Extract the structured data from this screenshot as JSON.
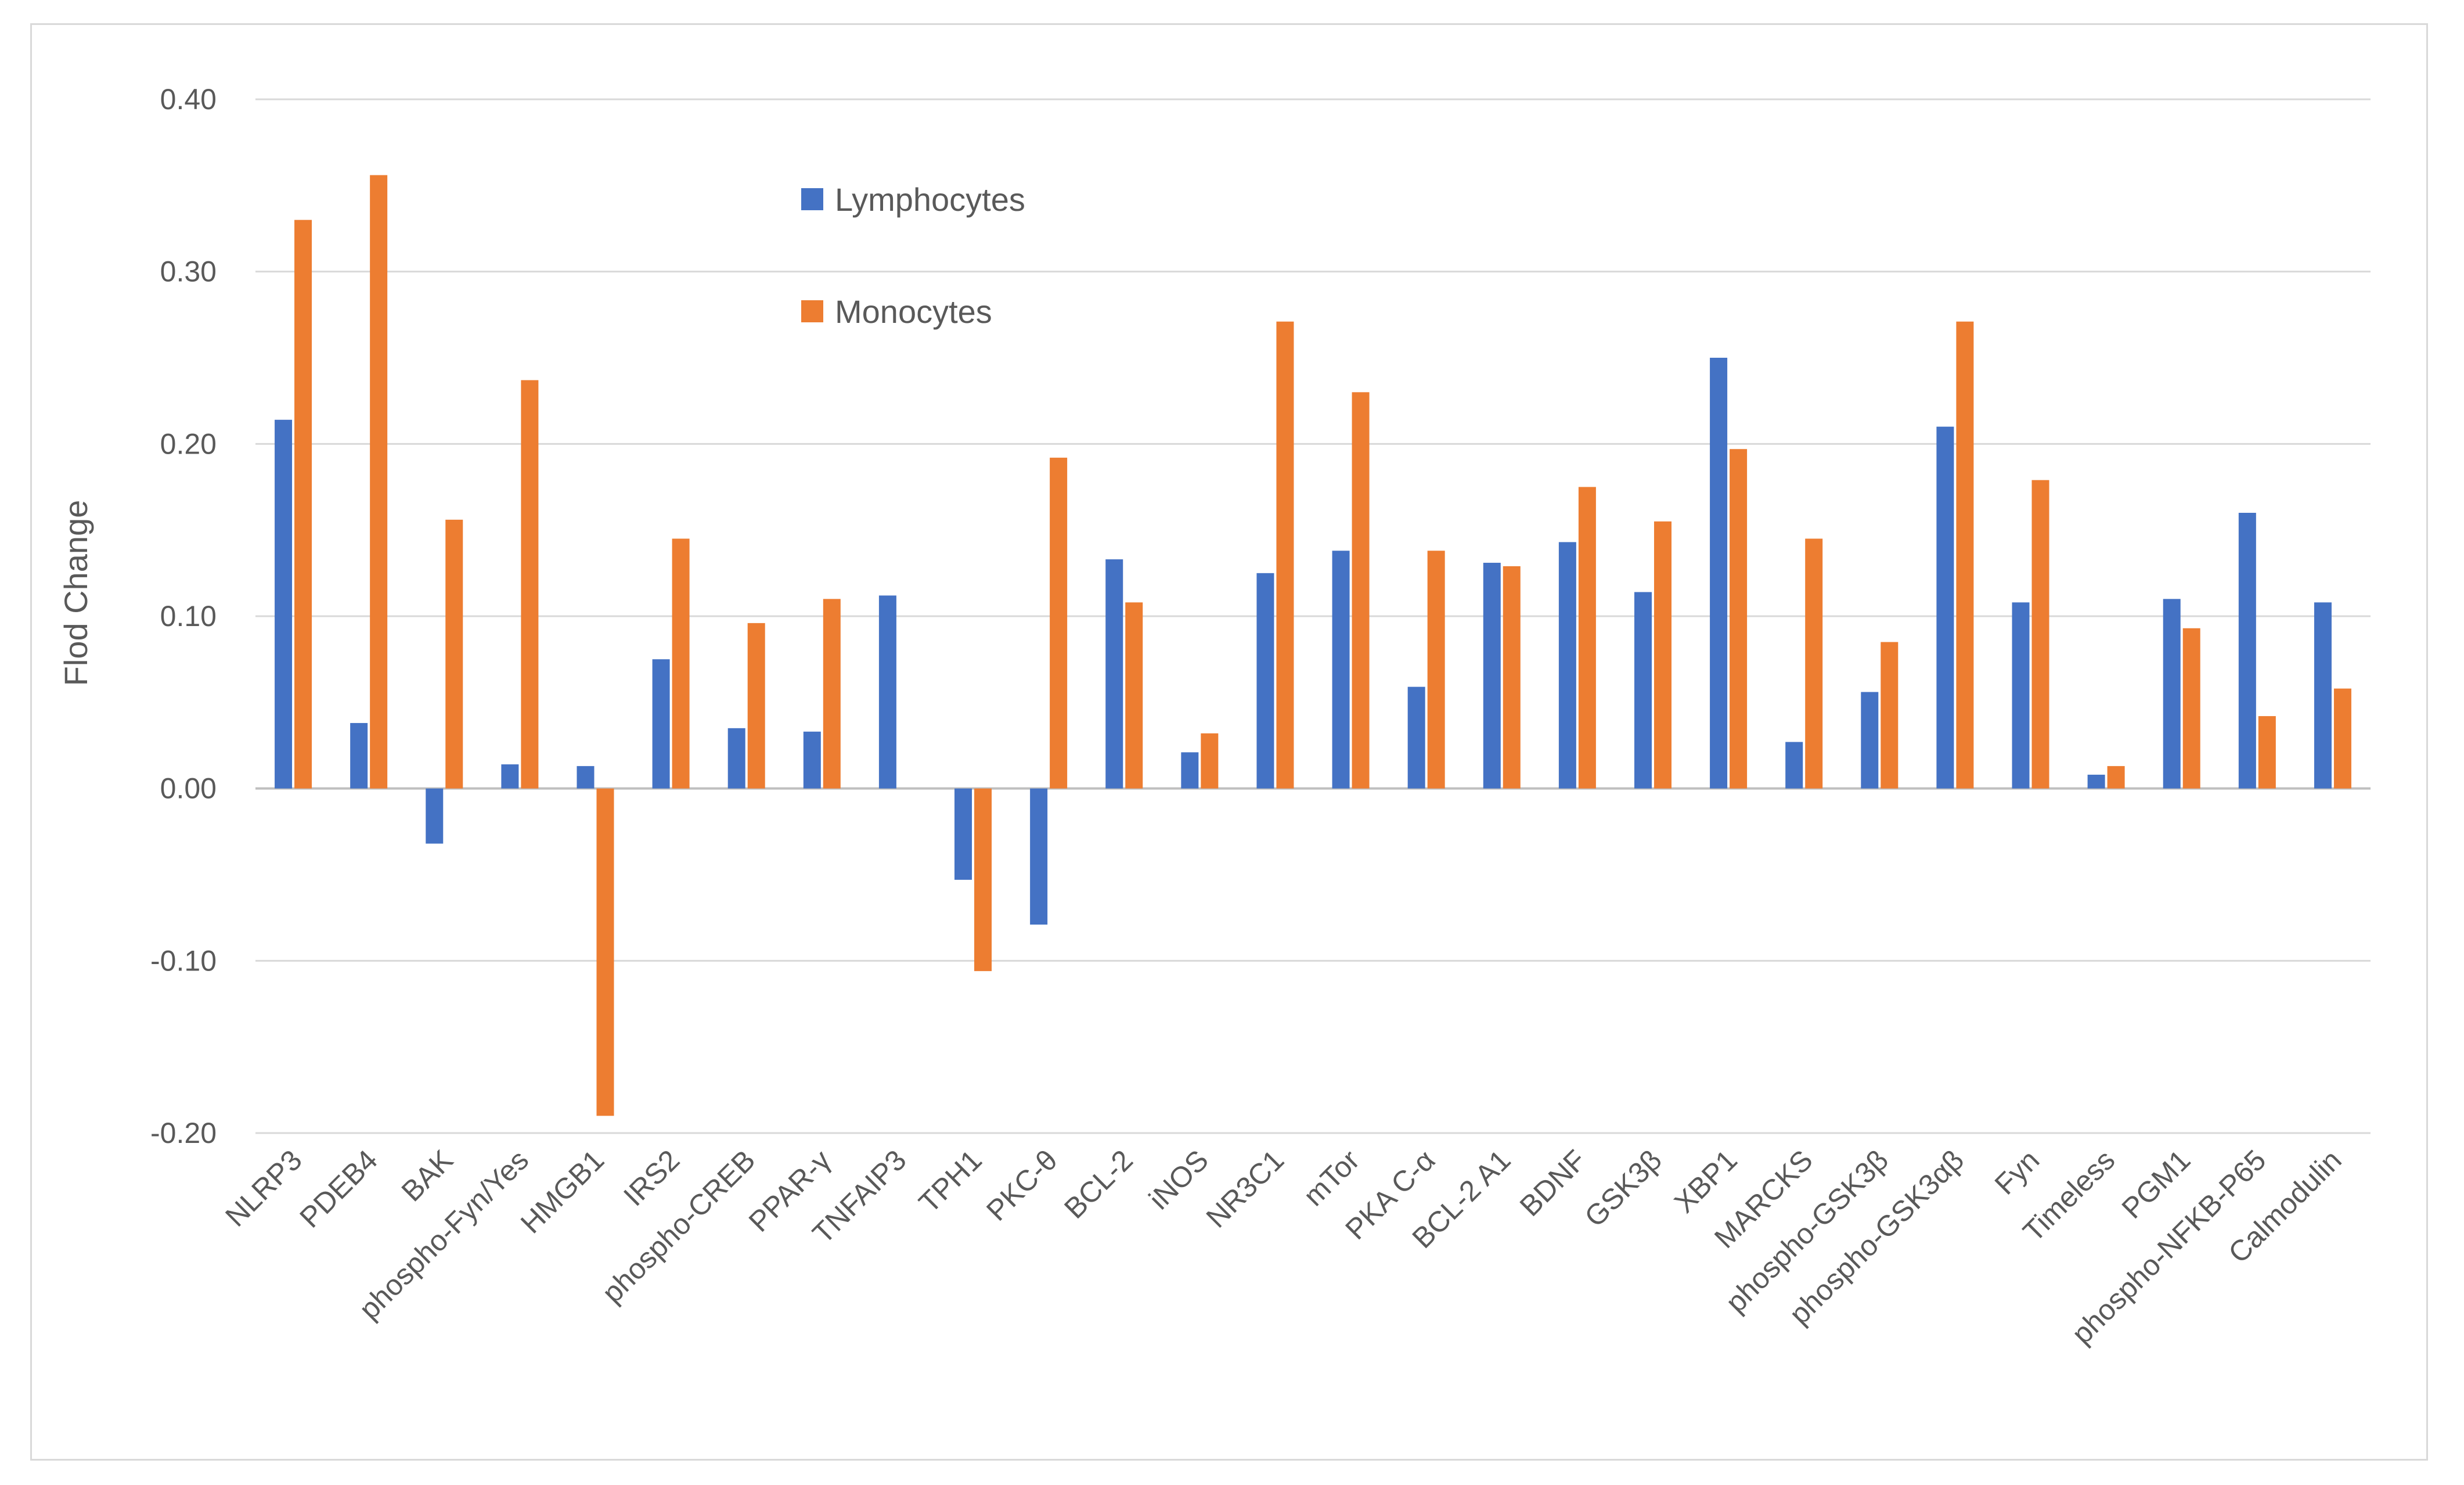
{
  "chart_data": {
    "type": "bar",
    "title": "",
    "xlabel": "",
    "ylabel": "Flod Change",
    "ylim": [
      -0.2,
      0.4
    ],
    "yticks": [
      "0.40",
      "0.30",
      "0.20",
      "0.10",
      "0.00",
      "-0.10",
      "-0.20"
    ],
    "ytick_values": [
      0.4,
      0.3,
      0.2,
      0.1,
      0.0,
      -0.1,
      -0.2
    ],
    "grid": true,
    "legend_position": "top-center",
    "categories": [
      "NLRP3",
      "PDEB4",
      "BAK",
      "phospho-Fyn/Yes",
      "HMGB1",
      "IRS2",
      "phospho-CREB",
      "PPAR-γ",
      "TNFAIP3",
      "TPH1",
      "PKC-θ",
      "BCL-2",
      "iNOS",
      "NR3C1",
      "mTor",
      "PKA C-α",
      "BCL-2 A1",
      "BDNF",
      "GSK3β",
      "XBP1",
      "MARCKS",
      "phospho-GSK3β",
      "phospho-GSK3αβ",
      "Fyn",
      "Timeless",
      "PGM1",
      "phospho-NFKB-P65",
      "Calmodulin"
    ],
    "series": [
      {
        "name": "Lymphocytes",
        "color": "#4472c4",
        "values": [
          0.214,
          0.038,
          -0.032,
          0.014,
          0.013,
          0.075,
          0.035,
          0.033,
          0.112,
          -0.053,
          -0.079,
          0.133,
          0.021,
          0.125,
          0.138,
          0.059,
          0.131,
          0.143,
          0.114,
          0.25,
          0.027,
          0.056,
          0.21,
          0.108,
          0.008,
          0.11,
          0.16,
          0.108
        ]
      },
      {
        "name": "Monocytes",
        "color": "#ed7d31",
        "values": [
          0.33,
          0.356,
          0.156,
          0.237,
          -0.19,
          0.145,
          0.096,
          0.11,
          0.0,
          -0.106,
          0.192,
          0.108,
          0.032,
          0.271,
          0.23,
          0.138,
          0.129,
          0.175,
          0.155,
          0.197,
          0.145,
          0.085,
          0.271,
          0.179,
          0.013,
          0.093,
          0.042,
          0.058
        ]
      }
    ]
  }
}
